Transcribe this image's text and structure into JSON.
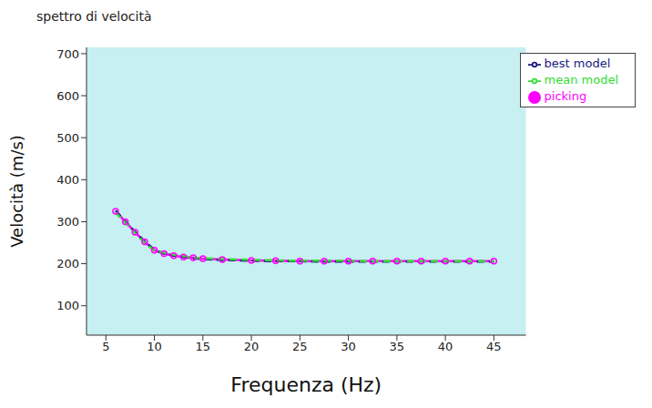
{
  "chart_data": {
    "type": "line",
    "title": "spettro di velocità",
    "x_label": "Frequenza (Hz)",
    "y_label": "Velocità (m/s)",
    "xlim": [
      3,
      48.3
    ],
    "xticks": [
      5,
      10,
      15,
      20,
      25,
      30,
      35,
      40,
      45
    ],
    "ylim": [
      30,
      715
    ],
    "yticks": [
      100,
      200,
      300,
      400,
      500,
      600,
      700
    ],
    "grid": false,
    "legend": "top-right",
    "series": [
      {
        "name": "picking",
        "color": "#ff00ff",
        "marker": "circle",
        "line_style": "solid",
        "x": [
          6,
          7,
          8,
          9,
          10,
          11,
          12,
          13,
          14,
          15,
          17,
          20,
          22.5,
          25,
          27.5,
          30,
          32.5,
          35,
          37.5,
          40,
          42.5,
          45
        ],
        "values": [
          325,
          300,
          275,
          252,
          232,
          224,
          219,
          216,
          214,
          212,
          210,
          208,
          207,
          206,
          206,
          206,
          206,
          206,
          206,
          206,
          206,
          206
        ]
      },
      {
        "name": "best model",
        "color": "#1a1a80",
        "marker": "none",
        "line_style": "dashed",
        "x": [
          6,
          7,
          8,
          9,
          10,
          11,
          12,
          13,
          14,
          15,
          17,
          20,
          22.5,
          25,
          27.5,
          30,
          32.5,
          35,
          37.5,
          40,
          42.5,
          45
        ],
        "values": [
          326,
          301,
          276,
          253,
          233,
          224,
          219,
          216,
          213,
          211,
          209,
          207,
          206,
          206,
          205,
          205,
          205,
          205,
          205,
          205,
          205,
          205
        ]
      },
      {
        "name": "mean model",
        "color": "#33dd33",
        "marker": "none",
        "line_style": "dashed",
        "x": [
          6,
          7,
          8,
          9,
          10,
          11,
          12,
          13,
          14,
          15,
          17,
          20,
          22.5,
          25,
          27.5,
          30,
          32.5,
          35,
          37.5,
          40,
          42.5,
          45
        ],
        "values": [
          322,
          298,
          273,
          250,
          231,
          226,
          221,
          218,
          215,
          213,
          211,
          209,
          208,
          207,
          207,
          207,
          206,
          206,
          206,
          206,
          206,
          206
        ]
      }
    ]
  }
}
